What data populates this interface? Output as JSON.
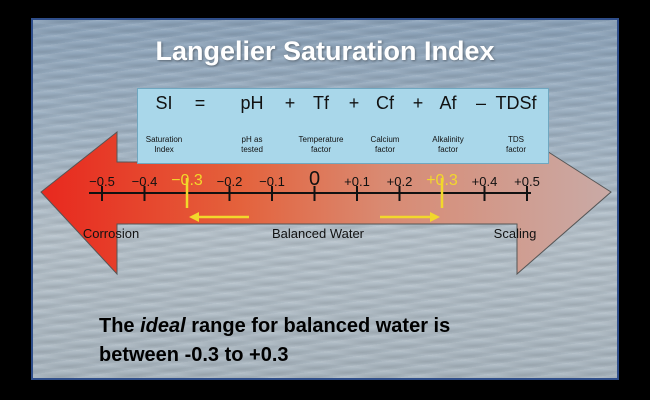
{
  "title": "Langelier Saturation Index",
  "formula": {
    "terms": [
      {
        "symbol": "SI",
        "desc": [
          "Saturation",
          "Index"
        ]
      },
      {
        "symbol": "pH",
        "desc": [
          "pH as",
          "tested"
        ]
      },
      {
        "symbol": "Tf",
        "desc": [
          "Temperature",
          "factor"
        ]
      },
      {
        "symbol": "Cf",
        "desc": [
          "Calcium",
          "factor"
        ]
      },
      {
        "symbol": "Af",
        "desc": [
          "Alkalinity",
          "factor"
        ]
      },
      {
        "symbol": "TDSf",
        "desc": [
          "TDS",
          "factor"
        ]
      }
    ],
    "operators": [
      "=",
      "+",
      "+",
      "+",
      "–"
    ]
  },
  "scale": {
    "ticks": [
      {
        "value": -0.5,
        "label": "−0.5"
      },
      {
        "value": -0.4,
        "label": "−0.4"
      },
      {
        "value": -0.3,
        "label": "−0.3",
        "highlight": true
      },
      {
        "value": -0.2,
        "label": "−0.2"
      },
      {
        "value": -0.1,
        "label": "−0.1"
      },
      {
        "value": 0,
        "label": "0"
      },
      {
        "value": 0.1,
        "label": "+0.1"
      },
      {
        "value": 0.2,
        "label": "+0.2"
      },
      {
        "value": 0.3,
        "label": "+0.3",
        "highlight": true
      },
      {
        "value": 0.4,
        "label": "+0.4"
      },
      {
        "value": 0.5,
        "label": "+0.5"
      }
    ],
    "zones": {
      "corrosion": "Corrosion",
      "balanced": "Balanced Water",
      "scaling": "Scaling"
    },
    "colors": {
      "corrosion": "#e8281e",
      "scaling": "#c9aaa6",
      "highlight": "#f2d82b"
    }
  },
  "note": {
    "line1_before": "The ",
    "line1_emph": "ideal",
    "line1_after": " range for balanced water is",
    "line2": "between -0.3 to +0.3"
  }
}
